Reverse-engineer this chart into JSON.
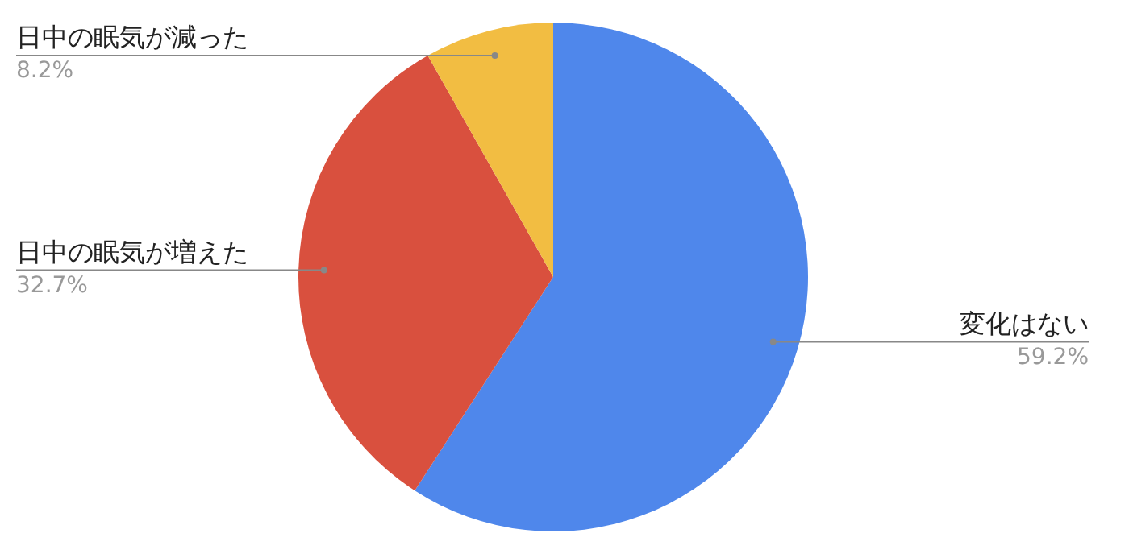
{
  "chart_data": {
    "type": "pie",
    "categories": [
      "変化はない",
      "日中の眠気が増えた",
      "日中の眠気が減った"
    ],
    "values": [
      59.2,
      32.7,
      8.2
    ],
    "colors": [
      "#4f87eb",
      "#d9503e",
      "#f2bd42"
    ],
    "value_labels": [
      "59.2%",
      "32.7%",
      "8.2%"
    ],
    "legend": false
  }
}
